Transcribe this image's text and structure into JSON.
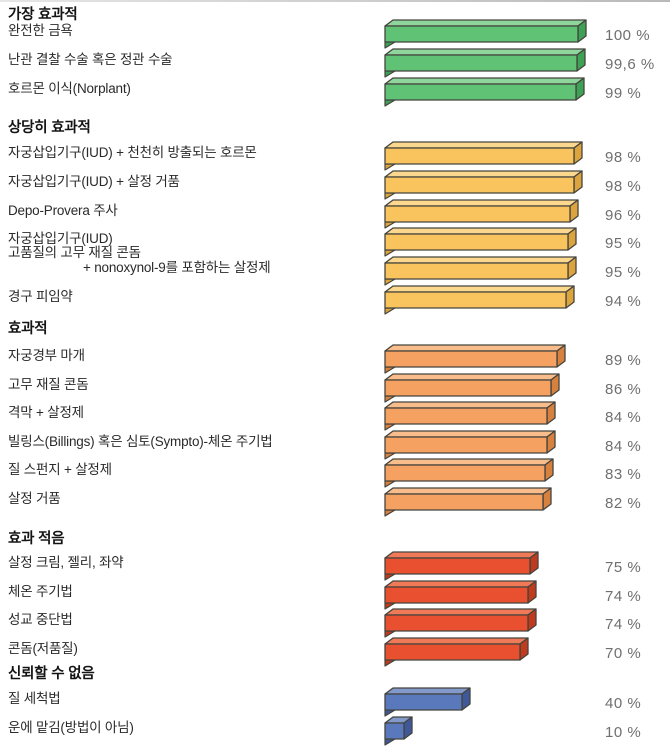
{
  "page": {
    "background": "#ffffff",
    "top_divider_color": "#bdbdbd"
  },
  "chart_data": {
    "type": "bar",
    "orientation": "horizontal",
    "unit": "%",
    "value_range": [
      0,
      100
    ],
    "labels_position": "left",
    "values_position": "right",
    "grid": false,
    "style": "3d-extruded-bars",
    "outline_color": "#45443e",
    "value_text_color": "#6f6f6f",
    "label_text_color": "#2a2a2a",
    "sections": [
      {
        "header": "가장 효과적",
        "colors": {
          "front": "#5fc274",
          "top": "#8fd69d",
          "side": "#3da156"
        },
        "items": [
          {
            "label": "완전한 금욕",
            "value": 100,
            "value_label": "100 %"
          },
          {
            "label": "난관 결찰 수술 혹은 정관 수술",
            "value": 99.6,
            "value_label": "99,6 %"
          },
          {
            "label": "호르몬 이식(Norplant)",
            "value": 99,
            "value_label": "99 %"
          }
        ]
      },
      {
        "header": "상당히 효과적",
        "colors": {
          "front": "#f9c45e",
          "top": "#fbd88e",
          "side": "#dca43e"
        },
        "items": [
          {
            "label": "자궁삽입기구(IUD) + 천천히 방출되는 호르몬",
            "value": 98,
            "value_label": "98 %"
          },
          {
            "label": "자궁삽입기구(IUD) + 살정 거품",
            "value": 98,
            "value_label": "98 %"
          },
          {
            "label": "Depo-Provera 주사",
            "value": 96,
            "value_label": "96 %"
          },
          {
            "label": "자궁삽입기구(IUD)",
            "value": 95,
            "value_label": "95 %"
          },
          {
            "label": "고품질의 고무 재질 콘돔",
            "label2": "+ nonoxynol-9를 포함하는 살정제",
            "value": 95,
            "value_label": "95 %"
          },
          {
            "label": "경구 피임약",
            "value": 94,
            "value_label": "94 %"
          }
        ]
      },
      {
        "header": "효과적",
        "colors": {
          "front": "#f5a161",
          "top": "#f8bd8b",
          "side": "#d7813f"
        },
        "items": [
          {
            "label": "자궁경부 마개",
            "value": 89,
            "value_label": "89 %"
          },
          {
            "label": "고무 재질 콘돔",
            "value": 86,
            "value_label": "86 %"
          },
          {
            "label": "격막 + 살정제",
            "value": 84,
            "value_label": "84 %"
          },
          {
            "label": "빌링스(Billings) 혹은 심토(Sympto)-체온 주기법",
            "value": 84,
            "value_label": "84 %"
          },
          {
            "label": "질 스펀지 + 살정제",
            "value": 83,
            "value_label": "83 %"
          },
          {
            "label": "살정 거품",
            "value": 82,
            "value_label": "82 %"
          }
        ]
      },
      {
        "header": "효과 적음",
        "colors": {
          "front": "#e8502f",
          "top": "#f07a57",
          "side": "#c03a1d"
        },
        "items": [
          {
            "label": "살정 크림, 젤리, 좌약",
            "value": 75,
            "value_label": "75 %"
          },
          {
            "label": "체온 주기법",
            "value": 74,
            "value_label": "74 %"
          },
          {
            "label": "성교 중단법",
            "value": 74,
            "value_label": "74 %"
          },
          {
            "label": "콘돔(저품질)",
            "value": 70,
            "value_label": "70 %"
          }
        ]
      },
      {
        "header": "신뢰할 수 없음",
        "colors": {
          "front": "#5a78bc",
          "top": "#8399cc",
          "side": "#3e5899"
        },
        "items": [
          {
            "label": "질 세척법",
            "value": 40,
            "value_label": "40 %"
          },
          {
            "label": "운에 맡김(방법이 아님)",
            "value": 10,
            "value_label": "10 %"
          }
        ]
      }
    ]
  }
}
